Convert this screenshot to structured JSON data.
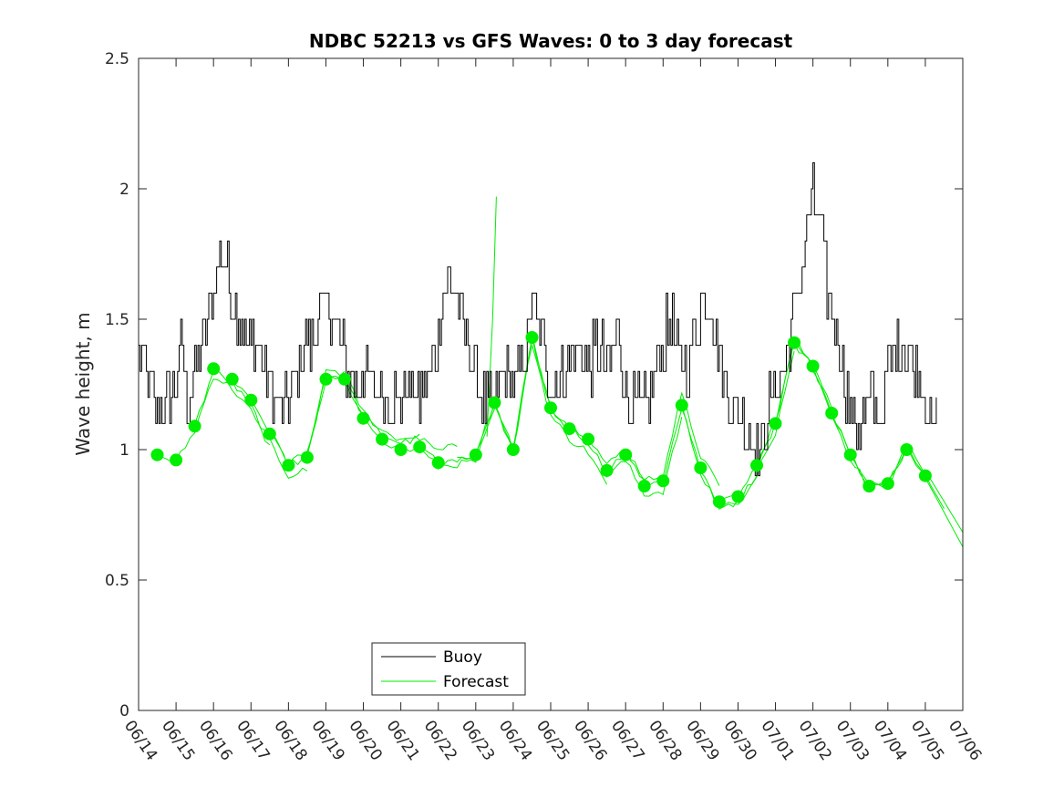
{
  "chart_data": {
    "type": "line",
    "title": "NDBC 52213 vs GFS Waves: 0 to 3 day forecast",
    "xlabel": "",
    "ylabel": "Wave height, m",
    "x_ticks": [
      "06/14",
      "06/15",
      "06/16",
      "06/17",
      "06/18",
      "06/19",
      "06/20",
      "06/21",
      "06/22",
      "06/23",
      "06/24",
      "06/25",
      "06/26",
      "06/27",
      "06/28",
      "06/29",
      "06/30",
      "07/01",
      "07/02",
      "07/03",
      "07/04",
      "07/05",
      "07/06"
    ],
    "xlim_days": [
      0,
      22
    ],
    "y_ticks": [
      "0",
      "0.5",
      "1",
      "1.5",
      "2",
      "2.5"
    ],
    "ylim": [
      0,
      2.5
    ],
    "grid": false,
    "legend_position": "bottom-left",
    "colors": {
      "buoy": "#000000",
      "forecast": "#00ee00"
    },
    "series": [
      {
        "name": "Buoy",
        "style": "line",
        "anchors": [
          [
            0,
            1.35
          ],
          [
            0.25,
            1.3
          ],
          [
            0.35,
            1.2
          ],
          [
            0.6,
            1.15
          ],
          [
            0.9,
            1.2
          ],
          [
            1.0,
            1.25
          ],
          [
            1.15,
            1.4
          ],
          [
            1.3,
            1.2
          ],
          [
            1.5,
            1.3
          ],
          [
            1.7,
            1.4
          ],
          [
            1.9,
            1.55
          ],
          [
            2.1,
            1.7
          ],
          [
            2.2,
            1.8
          ],
          [
            2.4,
            1.65
          ],
          [
            2.6,
            1.55
          ],
          [
            2.8,
            1.45
          ],
          [
            3.0,
            1.4
          ],
          [
            3.2,
            1.45
          ],
          [
            3.4,
            1.3
          ],
          [
            3.6,
            1.2
          ],
          [
            3.8,
            1.15
          ],
          [
            4.0,
            1.2
          ],
          [
            4.2,
            1.3
          ],
          [
            4.4,
            1.4
          ],
          [
            4.6,
            1.4
          ],
          [
            4.8,
            1.5
          ],
          [
            5.0,
            1.55
          ],
          [
            5.2,
            1.5
          ],
          [
            5.4,
            1.4
          ],
          [
            5.6,
            1.3
          ],
          [
            5.8,
            1.25
          ],
          [
            6.0,
            1.3
          ],
          [
            6.3,
            1.25
          ],
          [
            6.6,
            1.2
          ],
          [
            7.0,
            1.2
          ],
          [
            7.2,
            1.25
          ],
          [
            7.5,
            1.2
          ],
          [
            7.8,
            1.3
          ],
          [
            8.0,
            1.45
          ],
          [
            8.2,
            1.65
          ],
          [
            8.4,
            1.6
          ],
          [
            8.6,
            1.5
          ],
          [
            8.8,
            1.4
          ],
          [
            9.0,
            1.3
          ],
          [
            9.2,
            1.2
          ],
          [
            9.4,
            1.15
          ],
          [
            9.6,
            1.25
          ],
          [
            9.8,
            1.3
          ],
          [
            10.0,
            1.25
          ],
          [
            10.2,
            1.3
          ],
          [
            10.4,
            1.4
          ],
          [
            10.5,
            1.6
          ],
          [
            10.7,
            1.45
          ],
          [
            10.9,
            1.3
          ],
          [
            11.1,
            1.25
          ],
          [
            11.3,
            1.3
          ],
          [
            11.5,
            1.35
          ],
          [
            11.8,
            1.4
          ],
          [
            12.0,
            1.3
          ],
          [
            12.2,
            1.4
          ],
          [
            12.4,
            1.35
          ],
          [
            12.6,
            1.3
          ],
          [
            12.8,
            1.45
          ],
          [
            13.0,
            1.2
          ],
          [
            13.2,
            1.15
          ],
          [
            13.4,
            1.15
          ],
          [
            13.6,
            1.2
          ],
          [
            13.8,
            1.35
          ],
          [
            14.0,
            1.4
          ],
          [
            14.2,
            1.5
          ],
          [
            14.4,
            1.35
          ],
          [
            14.6,
            1.3
          ],
          [
            14.8,
            1.4
          ],
          [
            15.0,
            1.55
          ],
          [
            15.2,
            1.6
          ],
          [
            15.4,
            1.45
          ],
          [
            15.6,
            1.3
          ],
          [
            15.8,
            1.2
          ],
          [
            16.0,
            1.15
          ],
          [
            16.2,
            1.1
          ],
          [
            16.4,
            1.05
          ],
          [
            16.6,
            1.0
          ],
          [
            16.8,
            1.15
          ],
          [
            17.0,
            1.25
          ],
          [
            17.2,
            1.3
          ],
          [
            17.4,
            1.45
          ],
          [
            17.6,
            1.6
          ],
          [
            17.8,
            1.8
          ],
          [
            18.0,
            1.95
          ],
          [
            18.2,
            1.85
          ],
          [
            18.4,
            1.6
          ],
          [
            18.6,
            1.45
          ],
          [
            18.8,
            1.3
          ],
          [
            19.0,
            1.15
          ],
          [
            19.2,
            1.1
          ],
          [
            19.4,
            1.15
          ],
          [
            19.6,
            1.2
          ],
          [
            19.8,
            1.1
          ],
          [
            20.0,
            1.3
          ],
          [
            20.2,
            1.35
          ],
          [
            20.4,
            1.4
          ],
          [
            20.6,
            1.35
          ],
          [
            20.8,
            1.3
          ],
          [
            21.0,
            1.2
          ],
          [
            21.2,
            1.05
          ],
          [
            21.3,
            1.1
          ]
        ]
      },
      {
        "name": "Forecast",
        "style": "lines+markers",
        "analysis_markers": [
          [
            0.5,
            0.98
          ],
          [
            1.0,
            0.96
          ],
          [
            1.5,
            1.09
          ],
          [
            2.0,
            1.31
          ],
          [
            2.5,
            1.27
          ],
          [
            3.0,
            1.19
          ],
          [
            3.5,
            1.06
          ],
          [
            4.0,
            0.94
          ],
          [
            4.5,
            0.97
          ],
          [
            5.0,
            1.27
          ],
          [
            5.5,
            1.27
          ],
          [
            6.0,
            1.12
          ],
          [
            6.5,
            1.04
          ],
          [
            7.0,
            1.0
          ],
          [
            7.5,
            1.01
          ],
          [
            8.0,
            0.95
          ],
          [
            9.0,
            0.98
          ],
          [
            9.5,
            1.18
          ],
          [
            10.0,
            1.0
          ],
          [
            10.5,
            1.43
          ],
          [
            11.0,
            1.16
          ],
          [
            11.5,
            1.08
          ],
          [
            12.0,
            1.04
          ],
          [
            12.5,
            0.92
          ],
          [
            13.0,
            0.98
          ],
          [
            13.5,
            0.86
          ],
          [
            14.0,
            0.88
          ],
          [
            14.5,
            1.17
          ],
          [
            15.0,
            0.93
          ],
          [
            15.5,
            0.8
          ],
          [
            16.0,
            0.82
          ],
          [
            16.5,
            0.94
          ],
          [
            17.0,
            1.1
          ],
          [
            17.5,
            1.41
          ],
          [
            18.0,
            1.32
          ],
          [
            18.5,
            1.14
          ],
          [
            19.0,
            0.98
          ],
          [
            19.5,
            0.86
          ],
          [
            20.0,
            0.87
          ],
          [
            20.5,
            1.0
          ],
          [
            21.0,
            0.9
          ]
        ]
      }
    ]
  }
}
